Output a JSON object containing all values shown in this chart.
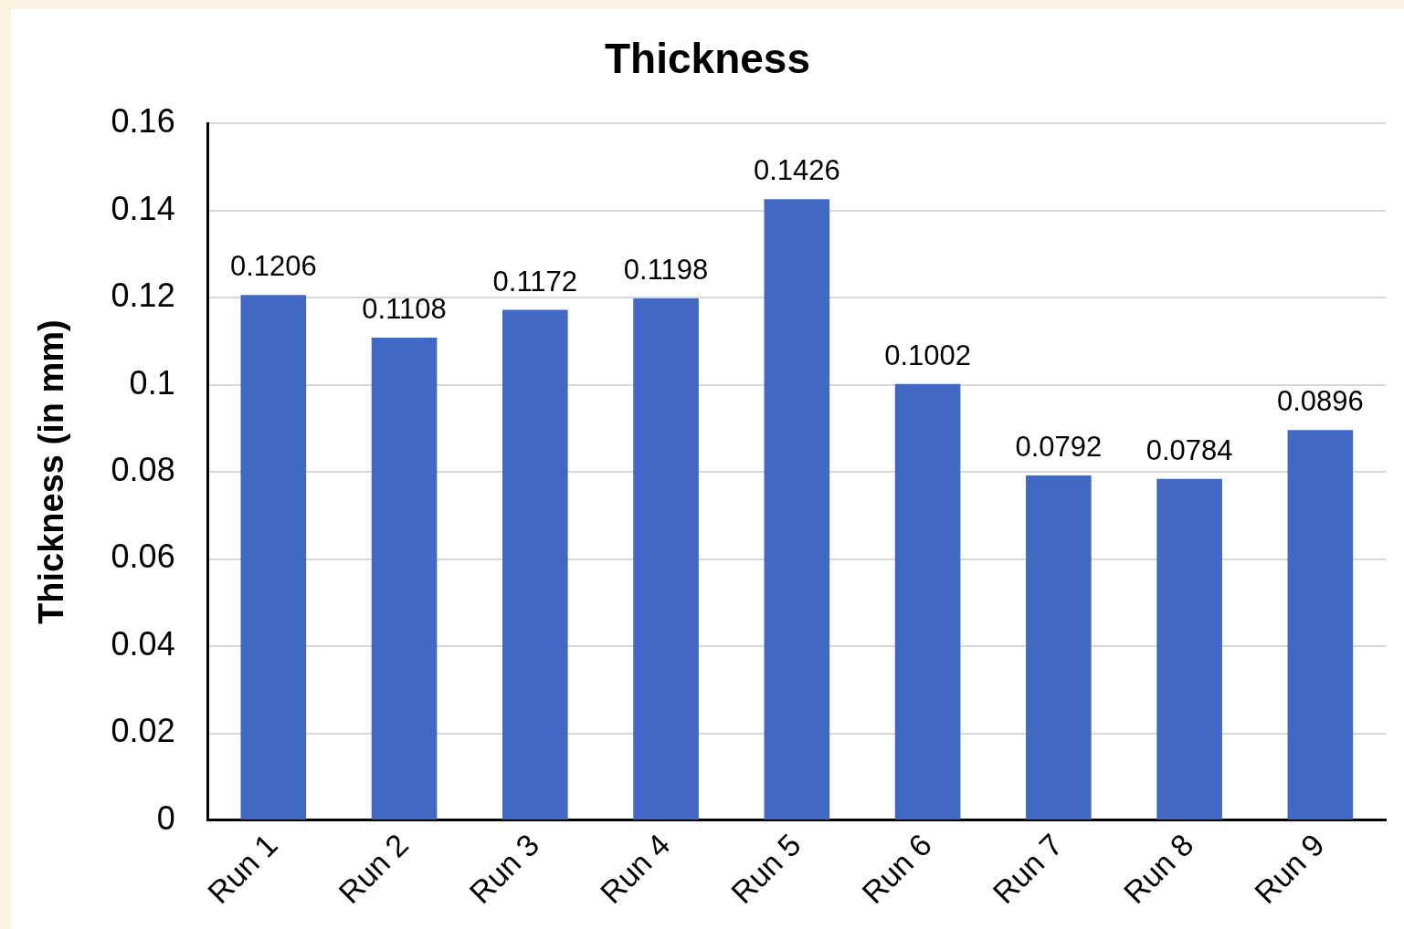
{
  "chart_data": {
    "type": "bar",
    "title": "Thickness",
    "ylabel": "Thickness (in mm)",
    "categories": [
      "Run 1",
      "Run 2",
      "Run 3",
      "Run 4",
      "Run 5",
      "Run 6",
      "Run 7",
      "Run 8",
      "Run 9"
    ],
    "values": [
      0.1206,
      0.1108,
      0.1172,
      0.1198,
      0.1426,
      0.1002,
      0.0792,
      0.0784,
      0.0896
    ],
    "color": "#4169c4",
    "ylim": [
      0,
      0.16
    ],
    "yticks": [
      0,
      0.02,
      0.04,
      0.06,
      0.08,
      0.1,
      0.12,
      0.14,
      0.16
    ],
    "grid": "y",
    "legend": false,
    "data_labels": true
  }
}
